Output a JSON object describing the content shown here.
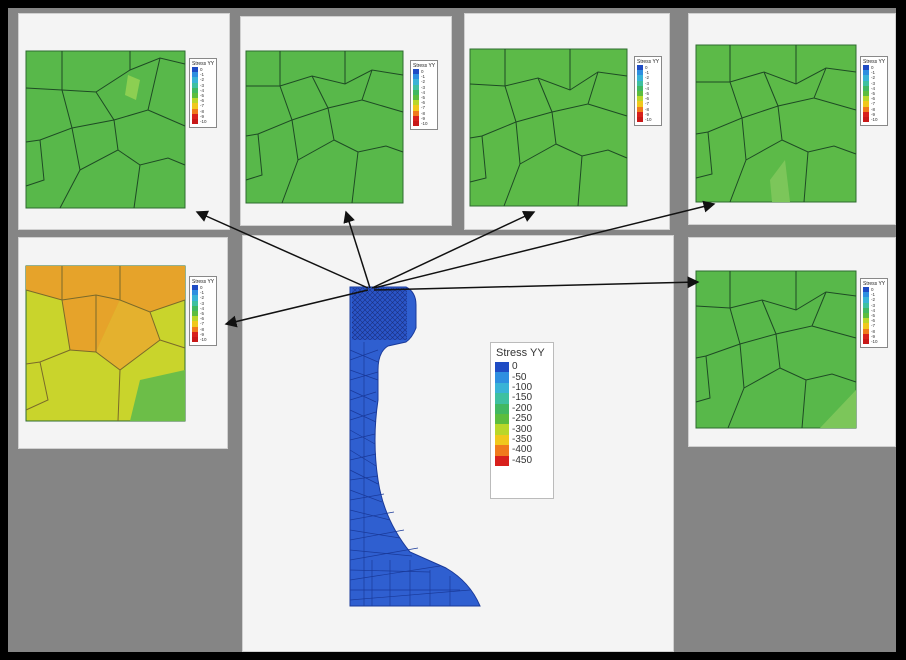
{
  "main_legend": {
    "title": "Stress YY",
    "entries": [
      {
        "label": "0",
        "color": "#1f4cc4"
      },
      {
        "label": "-50",
        "color": "#2e8fe0"
      },
      {
        "label": "-100",
        "color": "#39b3d6"
      },
      {
        "label": "-150",
        "color": "#3ec0a0"
      },
      {
        "label": "-200",
        "color": "#41b861"
      },
      {
        "label": "-250",
        "color": "#5cbd3e"
      },
      {
        "label": "-300",
        "color": "#b9d72a"
      },
      {
        "label": "-350",
        "color": "#f0c81c"
      },
      {
        "label": "-400",
        "color": "#f07a1c"
      },
      {
        "label": "-450",
        "color": "#d8201c"
      }
    ]
  },
  "mini_legend": {
    "title": "Stress YY",
    "labels": [
      "0",
      "-1",
      "-2",
      "-3",
      "-4",
      "-5",
      "-6",
      "-7",
      "-8",
      "-9",
      "-10"
    ]
  },
  "colors": {
    "grain_green": "#58b84a",
    "grain_green_light": "#7cc65a",
    "grain_yellow": "#c9d42c",
    "grain_orange": "#e6a32a",
    "mesh_blue": "#2f5fd0",
    "boundary": "#1e4a24"
  }
}
